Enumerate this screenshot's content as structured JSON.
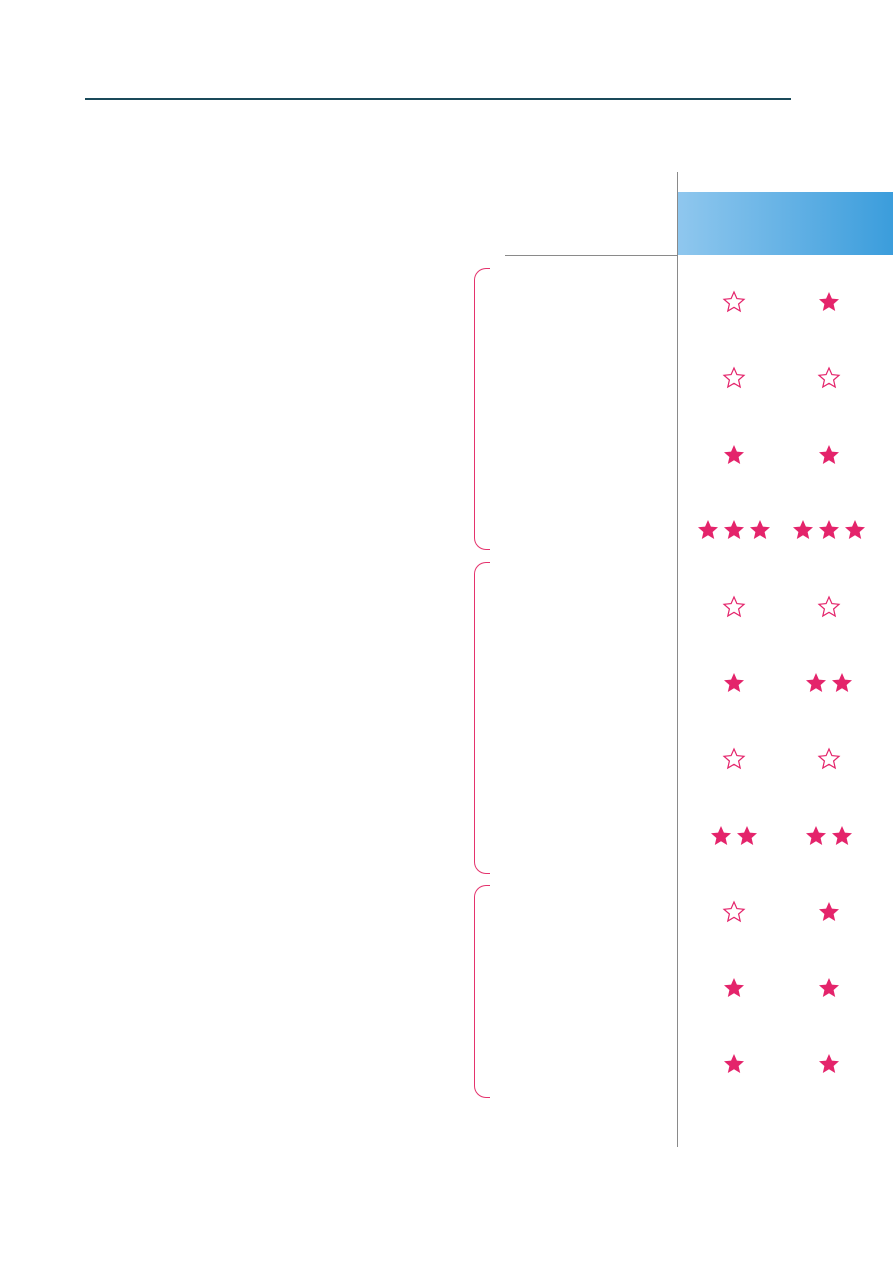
{
  "colors": {
    "star": "#e4246b",
    "header_band": "#3b9ddc",
    "rule": "#1a4a5a"
  },
  "icons": {
    "filled": "filled-star-icon",
    "empty": "empty-star-icon"
  },
  "rating_scale_max": 3,
  "rows": [
    {
      "col1": 0,
      "col2": 1
    },
    {
      "col1": 0,
      "col2": 0
    },
    {
      "col1": 1,
      "col2": 1
    },
    {
      "col1": 3,
      "col2": 3
    },
    {
      "col1": 0,
      "col2": 0
    },
    {
      "col1": 1,
      "col2": 2
    },
    {
      "col1": 0,
      "col2": 0
    },
    {
      "col1": 2,
      "col2": 2
    },
    {
      "col1": 0,
      "col2": 1
    },
    {
      "col1": 1,
      "col2": 1
    },
    {
      "col1": 1,
      "col2": 1
    }
  ],
  "groups": [
    {
      "row_count": 4
    },
    {
      "row_count": 4
    },
    {
      "row_count": 3
    }
  ]
}
